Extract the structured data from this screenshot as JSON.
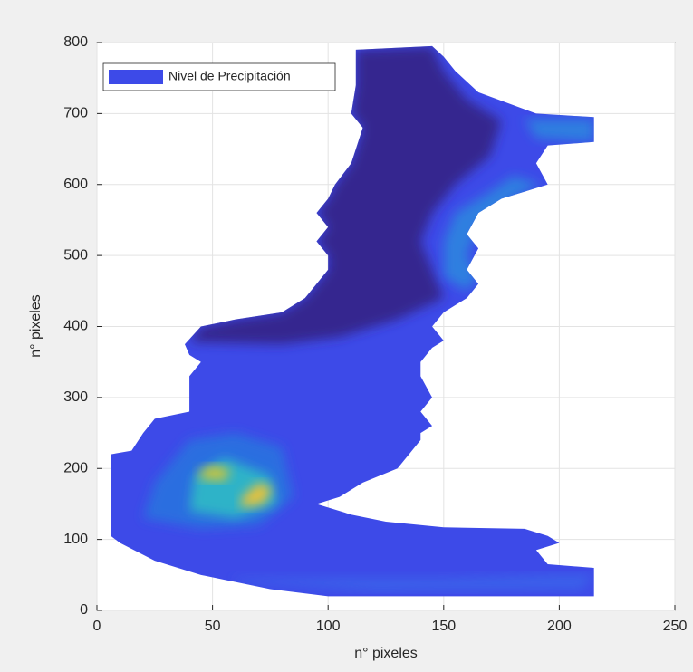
{
  "chart_data": {
    "type": "area",
    "xlabel": "n° pixeles",
    "ylabel": "n° pixeles",
    "xlim": [
      0,
      250
    ],
    "xticks": [
      0,
      50,
      100,
      150,
      200,
      250
    ],
    "ylim": [
      0,
      800
    ],
    "yticks": [
      0,
      100,
      200,
      300,
      400,
      500,
      600,
      700,
      800
    ],
    "grid": true,
    "legend": "upper left",
    "series": [
      {
        "name": "Nivel de Precipitación",
        "color": "#3d4ae8",
        "x": [
          112,
          145,
          150,
          155,
          165,
          190,
          215,
          215,
          195,
          190,
          195,
          185,
          175,
          165,
          160,
          165,
          160,
          165,
          160,
          150,
          145,
          150,
          145,
          140,
          140,
          145,
          140,
          145,
          140,
          140,
          135,
          130,
          115,
          105,
          95,
          110,
          125,
          150,
          185,
          195,
          200,
          190,
          195,
          215,
          215,
          100,
          75,
          45,
          25,
          10,
          6,
          6,
          15,
          20,
          25,
          40,
          40,
          40,
          45,
          40,
          38,
          45,
          60,
          80,
          90,
          95,
          100,
          100,
          95,
          100,
          95,
          100,
          103,
          110,
          115,
          110,
          112
        ],
        "y": [
          790,
          795,
          780,
          760,
          730,
          700,
          695,
          660,
          655,
          630,
          600,
          590,
          580,
          560,
          530,
          510,
          480,
          460,
          440,
          420,
          400,
          380,
          370,
          350,
          330,
          300,
          280,
          260,
          250,
          240,
          220,
          200,
          180,
          160,
          150,
          135,
          125,
          117,
          115,
          105,
          95,
          85,
          65,
          60,
          20,
          20,
          30,
          50,
          70,
          95,
          105,
          220,
          225,
          250,
          270,
          280,
          300,
          330,
          350,
          360,
          375,
          400,
          410,
          420,
          440,
          460,
          480,
          500,
          520,
          540,
          560,
          580,
          600,
          630,
          680,
          700,
          740
        ]
      }
    ],
    "regions": [
      {
        "color": "#35268f",
        "x": [
          112,
          145,
          150,
          160,
          175,
          170,
          155,
          145,
          140,
          145,
          150,
          130,
          105,
          80,
          40,
          45,
          60,
          80,
          90,
          95,
          100,
          100,
          95,
          100,
          95,
          100,
          103,
          110,
          115,
          110,
          112
        ],
        "y": [
          790,
          795,
          760,
          720,
          690,
          640,
          600,
          560,
          520,
          480,
          440,
          410,
          385,
          375,
          378,
          400,
          410,
          420,
          440,
          460,
          480,
          500,
          520,
          540,
          560,
          580,
          600,
          630,
          680,
          700,
          740
        ]
      },
      {
        "color": "#2d7fe0",
        "x": [
          150,
          160,
          165,
          160,
          165,
          180,
          192,
          180,
          170,
          155,
          150
        ],
        "y": [
          470,
          450,
          470,
          500,
          540,
          580,
          600,
          612,
          590,
          560,
          520
        ]
      },
      {
        "color": "#2d7fe0",
        "x": [
          185,
          215,
          215,
          190
        ],
        "y": [
          692,
          692,
          660,
          665
        ]
      },
      {
        "color": "#2a6ee0",
        "x": [
          20,
          45,
          70,
          85,
          80,
          60,
          40,
          25
        ],
        "y": [
          130,
          115,
          120,
          160,
          230,
          250,
          240,
          180
        ]
      },
      {
        "color": "#2fb3c8",
        "x": [
          40,
          60,
          78,
          75,
          55,
          42
        ],
        "y": [
          140,
          130,
          150,
          190,
          215,
          190
        ]
      },
      {
        "color": "#e8c23a",
        "x": [
          62,
          72,
          76,
          70,
          63
        ],
        "y": [
          145,
          150,
          172,
          180,
          160
        ]
      },
      {
        "color": "#c9c43e",
        "x": [
          45,
          55,
          58,
          50,
          44
        ],
        "y": [
          185,
          182,
          198,
          205,
          195
        ]
      },
      {
        "color": "#3b62ea",
        "x": [
          60,
          150,
          200,
          215,
          210,
          120,
          60
        ],
        "y": [
          45,
          45,
          50,
          50,
          30,
          28,
          40
        ]
      }
    ]
  }
}
